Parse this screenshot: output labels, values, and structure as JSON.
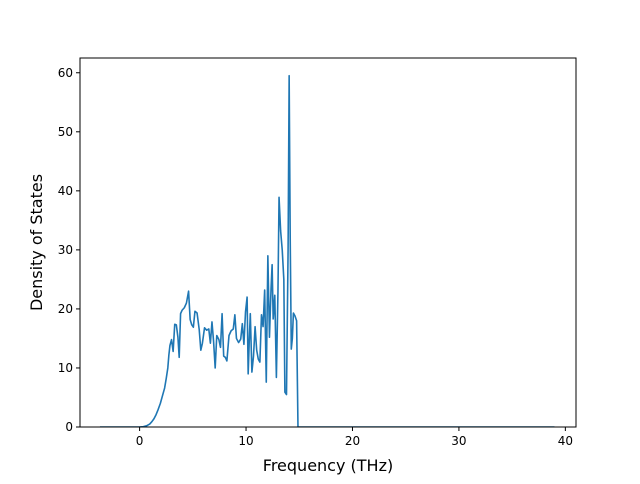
{
  "chart_data": {
    "type": "line",
    "title": "",
    "xlabel": "Frequency (THz)",
    "ylabel": "Density of States",
    "xlim": [
      -5.6,
      41.0
    ],
    "ylim": [
      0,
      62.5
    ],
    "xticks": [
      0,
      10,
      20,
      30,
      40
    ],
    "yticks": [
      0,
      10,
      20,
      30,
      40,
      50,
      60
    ],
    "grid": false,
    "legend": "none",
    "series": [
      {
        "color": "#1f77b4",
        "points": [
          [
            -3.65,
            0.0
          ],
          [
            -0.05,
            0.0
          ],
          [
            0.35,
            0.05
          ],
          [
            0.65,
            0.2
          ],
          [
            0.95,
            0.5
          ],
          [
            1.15,
            0.9
          ],
          [
            1.35,
            1.4
          ],
          [
            1.55,
            2.1
          ],
          [
            1.75,
            3.0
          ],
          [
            1.95,
            4.0
          ],
          [
            2.15,
            5.3
          ],
          [
            2.35,
            6.6
          ],
          [
            2.5,
            8.2
          ],
          [
            2.65,
            10.0
          ],
          [
            2.75,
            12.2
          ],
          [
            2.85,
            13.8
          ],
          [
            3.0,
            14.8
          ],
          [
            3.15,
            12.8
          ],
          [
            3.3,
            17.4
          ],
          [
            3.45,
            17.3
          ],
          [
            3.6,
            15.2
          ],
          [
            3.72,
            11.8
          ],
          [
            3.85,
            19.2
          ],
          [
            4.0,
            19.8
          ],
          [
            4.2,
            20.2
          ],
          [
            4.4,
            21.0
          ],
          [
            4.6,
            23.0
          ],
          [
            4.75,
            18.2
          ],
          [
            4.9,
            17.3
          ],
          [
            5.05,
            16.9
          ],
          [
            5.2,
            19.6
          ],
          [
            5.4,
            19.3
          ],
          [
            5.6,
            16.5
          ],
          [
            5.75,
            13.0
          ],
          [
            5.9,
            14.2
          ],
          [
            6.1,
            16.8
          ],
          [
            6.3,
            16.4
          ],
          [
            6.5,
            16.6
          ],
          [
            6.65,
            14.2
          ],
          [
            6.8,
            17.8
          ],
          [
            6.95,
            14.5
          ],
          [
            7.1,
            10.0
          ],
          [
            7.25,
            15.5
          ],
          [
            7.45,
            14.8
          ],
          [
            7.6,
            13.5
          ],
          [
            7.75,
            19.2
          ],
          [
            7.9,
            12.0
          ],
          [
            8.05,
            11.8
          ],
          [
            8.2,
            11.2
          ],
          [
            8.4,
            15.5
          ],
          [
            8.6,
            16.3
          ],
          [
            8.8,
            16.6
          ],
          [
            8.95,
            19.0
          ],
          [
            9.1,
            15.0
          ],
          [
            9.3,
            14.3
          ],
          [
            9.5,
            14.9
          ],
          [
            9.65,
            17.5
          ],
          [
            9.8,
            14.0
          ],
          [
            9.95,
            19.5
          ],
          [
            10.1,
            22.0
          ],
          [
            10.2,
            9.0
          ],
          [
            10.3,
            14.5
          ],
          [
            10.4,
            19.2
          ],
          [
            10.55,
            9.3
          ],
          [
            10.7,
            12.0
          ],
          [
            10.85,
            17.0
          ],
          [
            11.0,
            13.0
          ],
          [
            11.15,
            11.5
          ],
          [
            11.3,
            11.0
          ],
          [
            11.45,
            19.0
          ],
          [
            11.6,
            17.0
          ],
          [
            11.75,
            23.2
          ],
          [
            11.9,
            7.6
          ],
          [
            12.05,
            29.0
          ],
          [
            12.2,
            15.2
          ],
          [
            12.35,
            23.5
          ],
          [
            12.45,
            27.5
          ],
          [
            12.55,
            18.3
          ],
          [
            12.7,
            22.3
          ],
          [
            12.85,
            8.4
          ],
          [
            13.0,
            23.0
          ],
          [
            13.1,
            38.9
          ],
          [
            13.25,
            33.2
          ],
          [
            13.4,
            30.0
          ],
          [
            13.55,
            25.0
          ],
          [
            13.65,
            5.9
          ],
          [
            13.8,
            5.5
          ],
          [
            13.95,
            30.0
          ],
          [
            14.05,
            59.5
          ],
          [
            14.15,
            32.0
          ],
          [
            14.25,
            13.2
          ],
          [
            14.35,
            15.0
          ],
          [
            14.45,
            19.3
          ],
          [
            14.6,
            18.8
          ],
          [
            14.75,
            18.0
          ],
          [
            14.88,
            0.0
          ],
          [
            15.2,
            0.0
          ],
          [
            38.9,
            0.0
          ]
        ]
      }
    ]
  }
}
